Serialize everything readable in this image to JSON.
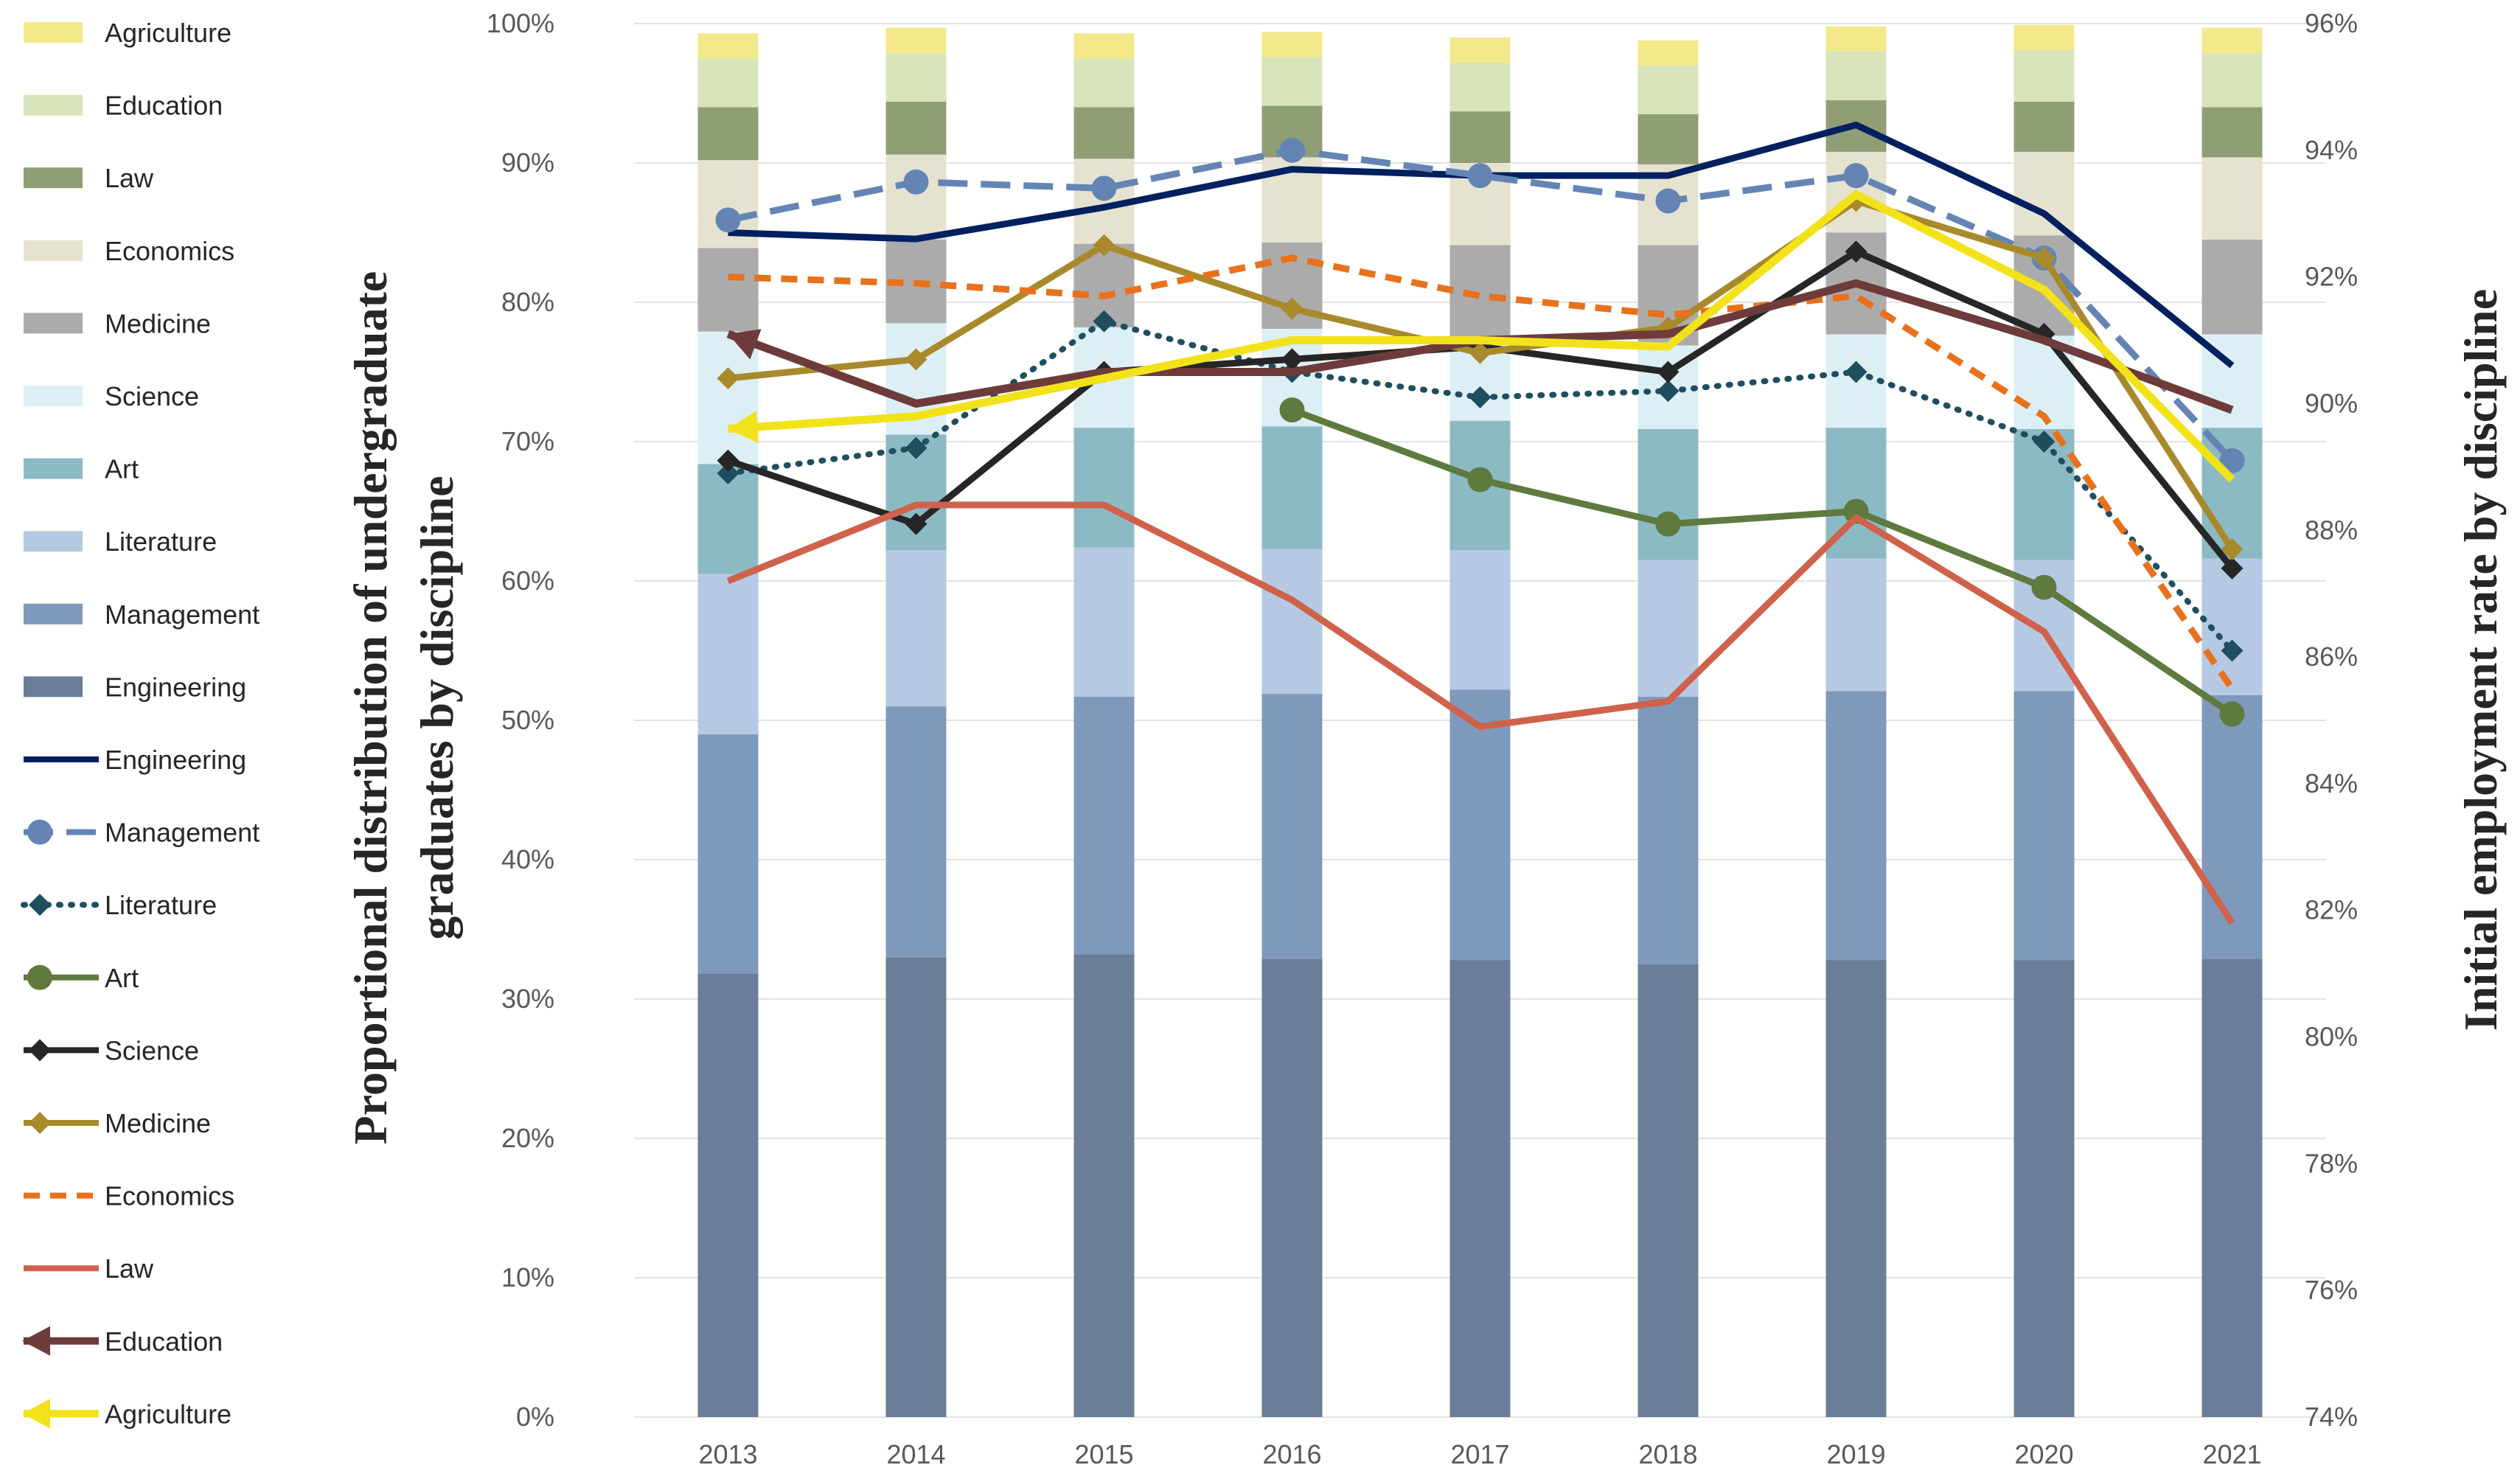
{
  "chart_data": {
    "type": "bar",
    "subtype": "stacked-percent-bar-with-line-overlay",
    "categories": [
      "2013",
      "2014",
      "2015",
      "2016",
      "2017",
      "2018",
      "2019",
      "2020",
      "2021"
    ],
    "y_left": {
      "label_line1": "Proportional distribution of undergraduate",
      "label_line2": "graduates by discipline",
      "range": [
        0,
        100
      ],
      "ticks": [
        "0%",
        "10%",
        "20%",
        "30%",
        "40%",
        "50%",
        "60%",
        "70%",
        "80%",
        "90%",
        "100%"
      ]
    },
    "y_right": {
      "label": "Initial employment rate by discipline",
      "range": [
        74,
        96
      ],
      "ticks": [
        "74%",
        "76%",
        "78%",
        "80%",
        "82%",
        "84%",
        "86%",
        "88%",
        "90%",
        "92%",
        "94%",
        "96%"
      ]
    },
    "bar_series": [
      {
        "name": "Engineering",
        "color": "#6A7E98",
        "values": [
          31.8,
          33.0,
          33.2,
          32.9,
          32.8,
          32.5,
          32.8,
          32.8,
          32.9
        ]
      },
      {
        "name": "Management",
        "color": "#7F99BC",
        "values": [
          17.2,
          18.0,
          18.5,
          19.0,
          19.4,
          19.2,
          19.3,
          19.3,
          18.9
        ]
      },
      {
        "name": "Literature",
        "color": "#B6C9E3",
        "values": [
          11.5,
          11.2,
          10.7,
          10.4,
          10.0,
          9.8,
          9.5,
          9.4,
          9.8
        ]
      },
      {
        "name": "Art",
        "color": "#8CBAC4",
        "values": [
          7.9,
          8.3,
          8.6,
          8.8,
          9.3,
          9.4,
          9.4,
          9.4,
          9.4
        ]
      },
      {
        "name": "Science",
        "color": "#DCEFF5",
        "values": [
          9.5,
          8.0,
          7.2,
          7.0,
          6.0,
          6.0,
          6.7,
          6.7,
          6.7
        ]
      },
      {
        "name": "Medicine",
        "color": "#ABABAB",
        "values": [
          6.0,
          6.0,
          6.0,
          6.2,
          6.6,
          7.2,
          7.3,
          7.2,
          6.8
        ]
      },
      {
        "name": "Economics",
        "color": "#E6E2D0",
        "values": [
          6.3,
          6.1,
          6.1,
          6.1,
          5.9,
          5.8,
          5.8,
          6.0,
          5.9
        ]
      },
      {
        "name": "Law",
        "color": "#909E76",
        "values": [
          3.8,
          3.8,
          3.7,
          3.7,
          3.7,
          3.6,
          3.7,
          3.6,
          3.6
        ]
      },
      {
        "name": "Education",
        "color": "#D8E4B9",
        "values": [
          3.5,
          3.5,
          3.5,
          3.5,
          3.5,
          3.5,
          3.5,
          3.7,
          3.9
        ]
      },
      {
        "name": "Agriculture",
        "color": "#F4E98A",
        "values": [
          1.8,
          1.8,
          1.8,
          1.8,
          1.8,
          1.8,
          1.8,
          1.8,
          1.8
        ]
      }
    ],
    "line_series": [
      {
        "name": "Engineering",
        "color": "#002060",
        "dash": "solid",
        "marker": "none",
        "values": [
          92.7,
          92.6,
          93.1,
          93.7,
          93.6,
          93.6,
          94.4,
          93.0,
          90.6
        ]
      },
      {
        "name": "Management",
        "color": "#6485B4",
        "dash": "longdash",
        "marker": "circle",
        "values": [
          92.9,
          93.5,
          93.4,
          94.0,
          93.6,
          93.2,
          93.6,
          92.3,
          89.1
        ]
      },
      {
        "name": "Literature",
        "color": "#1F4E5F",
        "dash": "dot",
        "marker": "diamond",
        "values": [
          88.9,
          89.3,
          91.3,
          90.5,
          90.1,
          90.2,
          90.5,
          89.4,
          86.1
        ]
      },
      {
        "name": "Art",
        "color": "#5F7A3E",
        "dash": "solid",
        "marker": "circle",
        "values": [
          null,
          null,
          null,
          89.9,
          88.8,
          88.1,
          88.3,
          87.1,
          85.1
        ]
      },
      {
        "name": "Science",
        "color": "#262626",
        "dash": "solid",
        "marker": "diamond",
        "values": [
          89.1,
          88.1,
          90.5,
          90.7,
          90.9,
          90.5,
          92.4,
          91.1,
          87.4
        ]
      },
      {
        "name": "Medicine",
        "color": "#A88A2C",
        "dash": "solid",
        "marker": "diamond",
        "values": [
          90.4,
          90.7,
          92.5,
          91.5,
          90.8,
          91.2,
          93.2,
          92.3,
          87.7
        ]
      },
      {
        "name": "Economics",
        "color": "#E8711C",
        "dash": "shortdash",
        "marker": "none",
        "values": [
          92.0,
          91.9,
          91.7,
          92.3,
          91.7,
          91.4,
          91.7,
          89.8,
          85.5
        ]
      },
      {
        "name": "Law",
        "color": "#D0614A",
        "dash": "solid",
        "marker": "none",
        "values": [
          87.2,
          88.4,
          88.4,
          86.9,
          84.9,
          85.3,
          88.2,
          86.4,
          81.8
        ]
      },
      {
        "name": "Education",
        "color": "#6E3B3B",
        "dash": "solid",
        "marker": "arrow",
        "values": [
          91.1,
          90.0,
          90.5,
          90.5,
          91.0,
          91.1,
          91.9,
          91.0,
          89.9
        ]
      },
      {
        "name": "Agriculture",
        "color": "#F2E21A",
        "dash": "solid",
        "marker": "arrow",
        "values": [
          89.6,
          89.8,
          90.4,
          91.0,
          91.0,
          90.9,
          93.3,
          91.8,
          88.8
        ]
      }
    ]
  }
}
